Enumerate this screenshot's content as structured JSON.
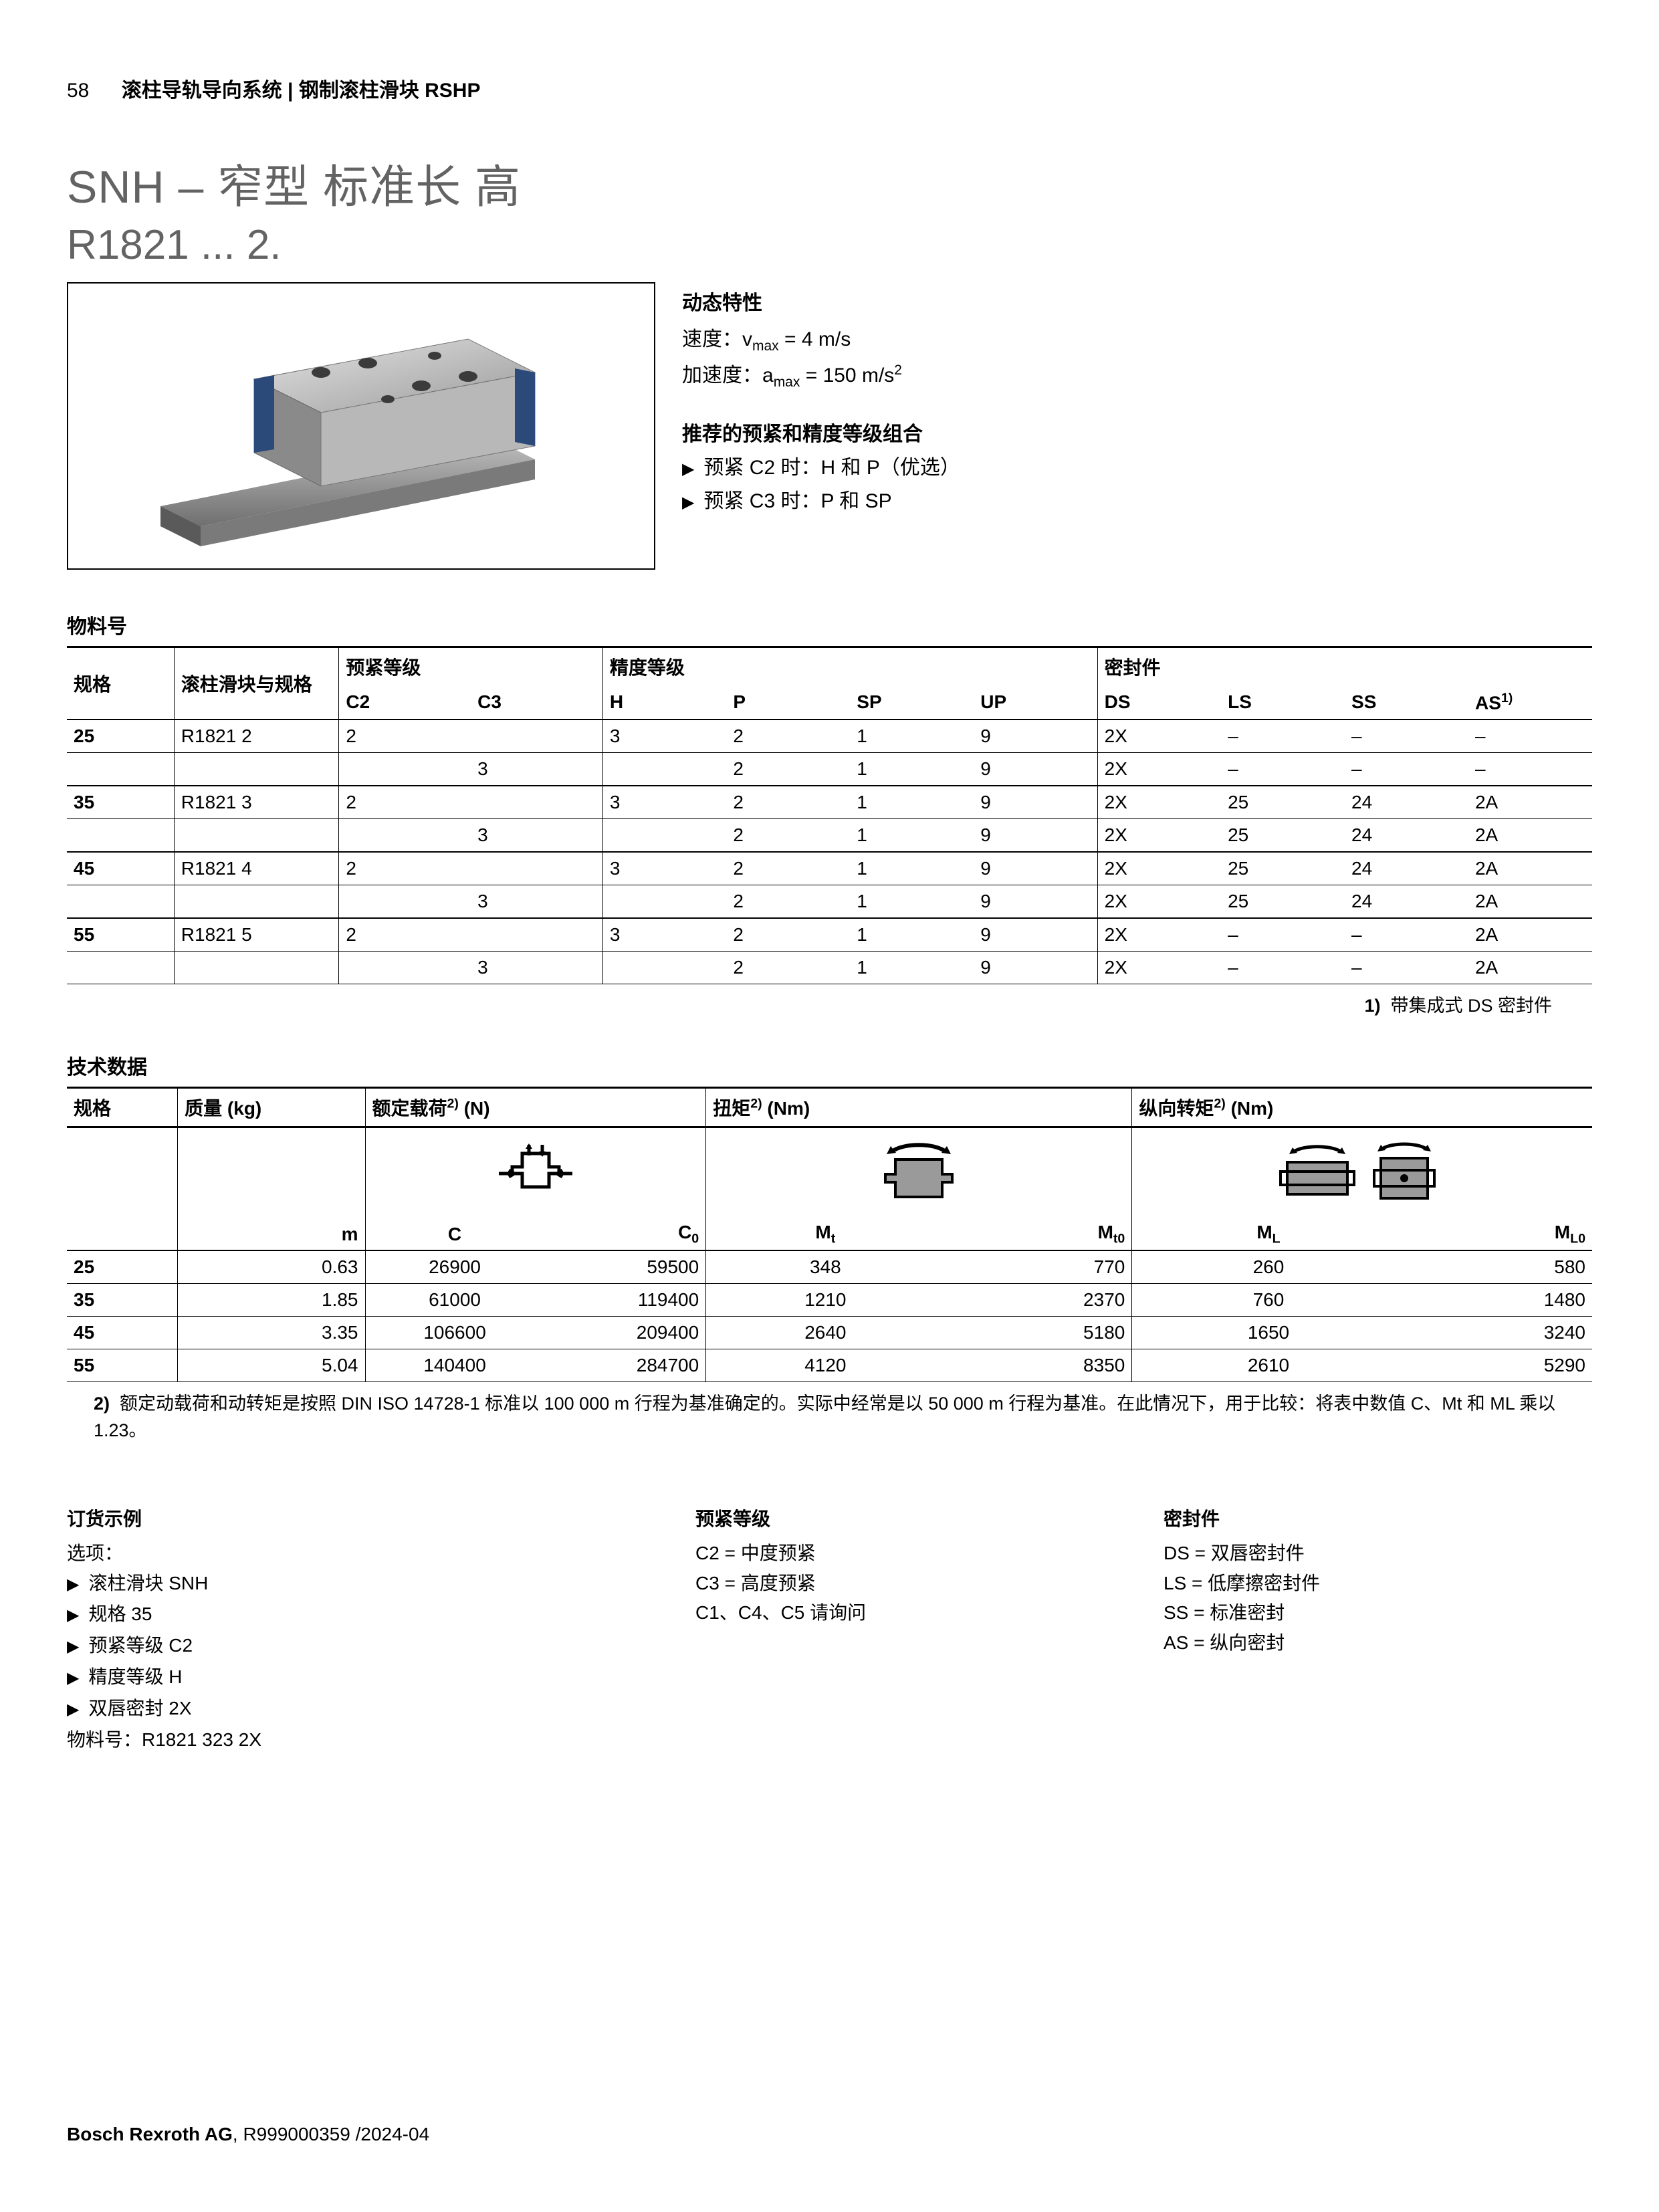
{
  "page_number": "58",
  "breadcrumb": "滚柱导轨导向系统 | 钢制滚柱滑块 RSHP",
  "title_main": "SNH – 窄型 标准长 高",
  "title_sub": "R1821 ... 2.",
  "dynamic": {
    "heading": "动态特性",
    "speed_label": "速度：",
    "speed_sym": "v",
    "speed_sub": "max",
    "speed_val": " = 4 m/s",
    "accel_label": "加速度：",
    "accel_sym": "a",
    "accel_sub": "max",
    "accel_val": " = 150 m/s",
    "accel_sup": "2"
  },
  "combo": {
    "heading": "推荐的预紧和精度等级组合",
    "line1": "预紧 C2 时：H 和 P（优选）",
    "line2": "预紧 C3 时：P 和 SP"
  },
  "mat_section": "物料号",
  "mat_headers": {
    "c1": "规格",
    "c2": "滚柱滑块与规格",
    "g_preload": "预紧等级",
    "g_accuracy": "精度等级",
    "g_seal": "密封件",
    "s_c2": "C2",
    "s_c3": "C3",
    "s_h": "H",
    "s_p": "P",
    "s_sp": "SP",
    "s_up": "UP",
    "s_ds": "DS",
    "s_ls": "LS",
    "s_ss": "SS",
    "s_as": "AS",
    "as_sup": "1)"
  },
  "mat_rows": [
    {
      "size": "25",
      "block": "R1821 2",
      "c2": "2",
      "c3": "",
      "h": "3",
      "p": "2",
      "sp": "1",
      "up": "9",
      "ds": "2X",
      "ls": "–",
      "ss": "–",
      "as": "–"
    },
    {
      "size": "",
      "block": "",
      "c2": "",
      "c3": "3",
      "h": "",
      "p": "2",
      "sp": "1",
      "up": "9",
      "ds": "2X",
      "ls": "–",
      "ss": "–",
      "as": "–"
    },
    {
      "size": "35",
      "block": "R1821 3",
      "c2": "2",
      "c3": "",
      "h": "3",
      "p": "2",
      "sp": "1",
      "up": "9",
      "ds": "2X",
      "ls": "25",
      "ss": "24",
      "as": "2A"
    },
    {
      "size": "",
      "block": "",
      "c2": "",
      "c3": "3",
      "h": "",
      "p": "2",
      "sp": "1",
      "up": "9",
      "ds": "2X",
      "ls": "25",
      "ss": "24",
      "as": "2A"
    },
    {
      "size": "45",
      "block": "R1821 4",
      "c2": "2",
      "c3": "",
      "h": "3",
      "p": "2",
      "sp": "1",
      "up": "9",
      "ds": "2X",
      "ls": "25",
      "ss": "24",
      "as": "2A"
    },
    {
      "size": "",
      "block": "",
      "c2": "",
      "c3": "3",
      "h": "",
      "p": "2",
      "sp": "1",
      "up": "9",
      "ds": "2X",
      "ls": "25",
      "ss": "24",
      "as": "2A"
    },
    {
      "size": "55",
      "block": "R1821 5",
      "c2": "2",
      "c3": "",
      "h": "3",
      "p": "2",
      "sp": "1",
      "up": "9",
      "ds": "2X",
      "ls": "–",
      "ss": "–",
      "as": "2A"
    },
    {
      "size": "",
      "block": "",
      "c2": "",
      "c3": "3",
      "h": "",
      "p": "2",
      "sp": "1",
      "up": "9",
      "ds": "2X",
      "ls": "–",
      "ss": "–",
      "as": "2A"
    }
  ],
  "mat_footnote_num": "1)",
  "mat_footnote": "带集成式 DS 密封件",
  "tech_section": "技术数据",
  "tech_headers": {
    "size": "规格",
    "mass": "质量 (kg)",
    "load": "额定载荷",
    "load_sup": "2)",
    "load_unit": " (N)",
    "torque": "扭矩",
    "torque_sup": "2)",
    "torque_unit": " (Nm)",
    "ltorque": "纵向转矩",
    "ltorque_sup": "2)",
    "ltorque_unit": " (Nm)",
    "m": "m",
    "C": "C",
    "C0": "C",
    "C0_sub": "0",
    "Mt": "M",
    "Mt_sub": "t",
    "Mt0": "M",
    "Mt0_sub": "t0",
    "ML": "M",
    "ML_sub": "L",
    "ML0": "M",
    "ML0_sub": "L0"
  },
  "tech_rows": [
    {
      "size": "25",
      "m": "0.63",
      "C": "26900",
      "C0": "59500",
      "Mt": "348",
      "Mt0": "770",
      "ML": "260",
      "ML0": "580"
    },
    {
      "size": "35",
      "m": "1.85",
      "C": "61000",
      "C0": "119400",
      "Mt": "1210",
      "Mt0": "2370",
      "ML": "760",
      "ML0": "1480"
    },
    {
      "size": "45",
      "m": "3.35",
      "C": "106600",
      "C0": "209400",
      "Mt": "2640",
      "Mt0": "5180",
      "ML": "1650",
      "ML0": "3240"
    },
    {
      "size": "55",
      "m": "5.04",
      "C": "140400",
      "C0": "284700",
      "Mt": "4120",
      "Mt0": "8350",
      "ML": "2610",
      "ML0": "5290"
    }
  ],
  "tech_footnote_num": "2)",
  "tech_footnote": "额定动载荷和动转矩是按照 DIN ISO 14728-1 标准以 100 000 m 行程为基准确定的。实际中经常是以 50 000 m 行程为基准。在此情况下，用于比较：将表中数值 C、Mt 和 ML 乘以 1.23。",
  "order": {
    "heading": "订货示例",
    "sub": "选项：",
    "items": [
      "滚柱滑块 SNH",
      "规格 35",
      "预紧等级 C2",
      "精度等级 H",
      "双唇密封 2X"
    ],
    "result": "物料号：R1821 323 2X"
  },
  "preload_legend": {
    "heading": "预紧等级",
    "lines": [
      "C2 = 中度预紧",
      "C3 = 高度预紧",
      "C1、C4、C5 请询问"
    ]
  },
  "seal_legend": {
    "heading": "密封件",
    "lines": [
      "DS = 双唇密封件",
      "LS  = 低摩擦密封件",
      "SS = 标准密封",
      "AS = 纵向密封"
    ]
  },
  "footer_company": "Bosch Rexroth AG",
  "footer_doc": ", R999000359 /2024-04",
  "colors": {
    "text": "#000000",
    "title": "#636363",
    "product_body": "#c8c8c8",
    "product_dark": "#8a8a8a",
    "product_blue": "#2b4a7a",
    "icon_stroke": "#000000",
    "icon_fill": "#9a9a9a"
  }
}
